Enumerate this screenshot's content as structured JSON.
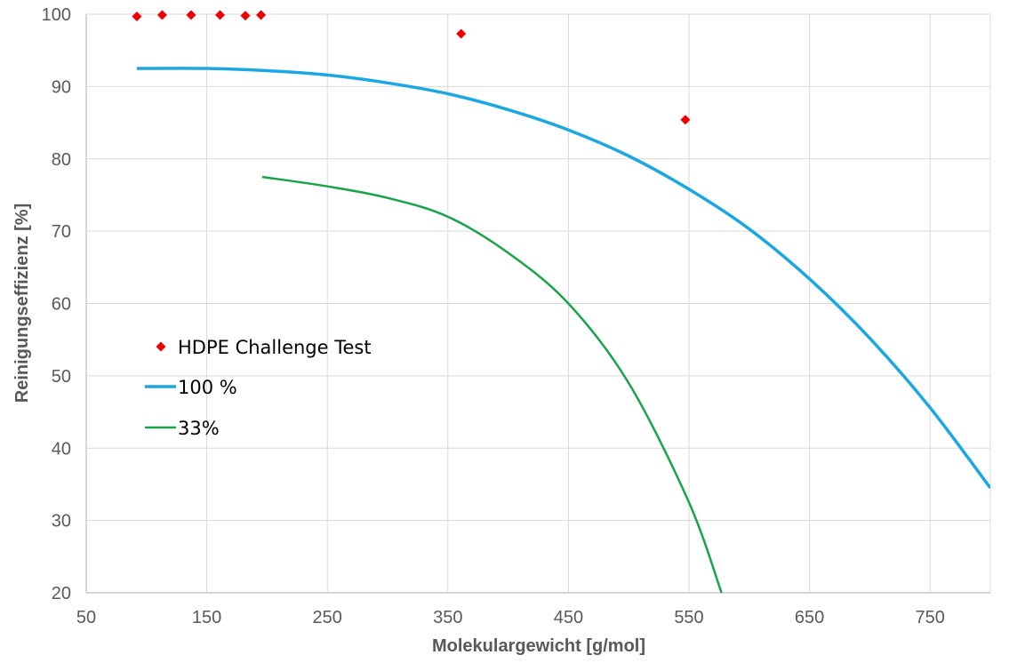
{
  "chart_data": {
    "type": "scatter",
    "xlabel": "Molekulargewicht [g/mol]",
    "ylabel": "Reinigungseffizienz [%]",
    "xlim": [
      50,
      800
    ],
    "ylim": [
      20,
      100
    ],
    "xticks": [
      50,
      150,
      250,
      350,
      450,
      550,
      650,
      750
    ],
    "yticks": [
      20,
      30,
      40,
      50,
      60,
      70,
      80,
      90,
      100
    ],
    "grid": true,
    "legend_position": "left-middle",
    "series": [
      {
        "name": "HDPE Challenge Test",
        "kind": "scatter",
        "marker": "diamond",
        "color": "#ee0000",
        "points": [
          [
            92,
            99.7
          ],
          [
            113,
            99.9
          ],
          [
            137,
            99.9
          ],
          [
            161,
            99.9
          ],
          [
            182,
            99.8
          ],
          [
            195,
            99.9
          ],
          [
            361,
            97.3
          ],
          [
            547,
            85.4
          ]
        ]
      },
      {
        "name": "100 %",
        "kind": "line",
        "color": "#1aa7e2",
        "points": [
          [
            92,
            92.5
          ],
          [
            150,
            92.5
          ],
          [
            200,
            92.2
          ],
          [
            250,
            91.6
          ],
          [
            300,
            90.5
          ],
          [
            350,
            89.0
          ],
          [
            400,
            86.8
          ],
          [
            450,
            84.0
          ],
          [
            500,
            80.4
          ],
          [
            550,
            75.8
          ],
          [
            600,
            70.3
          ],
          [
            650,
            63.4
          ],
          [
            700,
            55.2
          ],
          [
            750,
            45.6
          ],
          [
            800,
            34.5
          ]
        ]
      },
      {
        "name": "33%",
        "kind": "line",
        "color": "#1aa34a",
        "points": [
          [
            196,
            77.5
          ],
          [
            250,
            76.2
          ],
          [
            300,
            74.6
          ],
          [
            350,
            72.0
          ],
          [
            400,
            67.0
          ],
          [
            450,
            60.0
          ],
          [
            500,
            49.0
          ],
          [
            550,
            32.5
          ],
          [
            577,
            20.0
          ]
        ]
      }
    ]
  }
}
